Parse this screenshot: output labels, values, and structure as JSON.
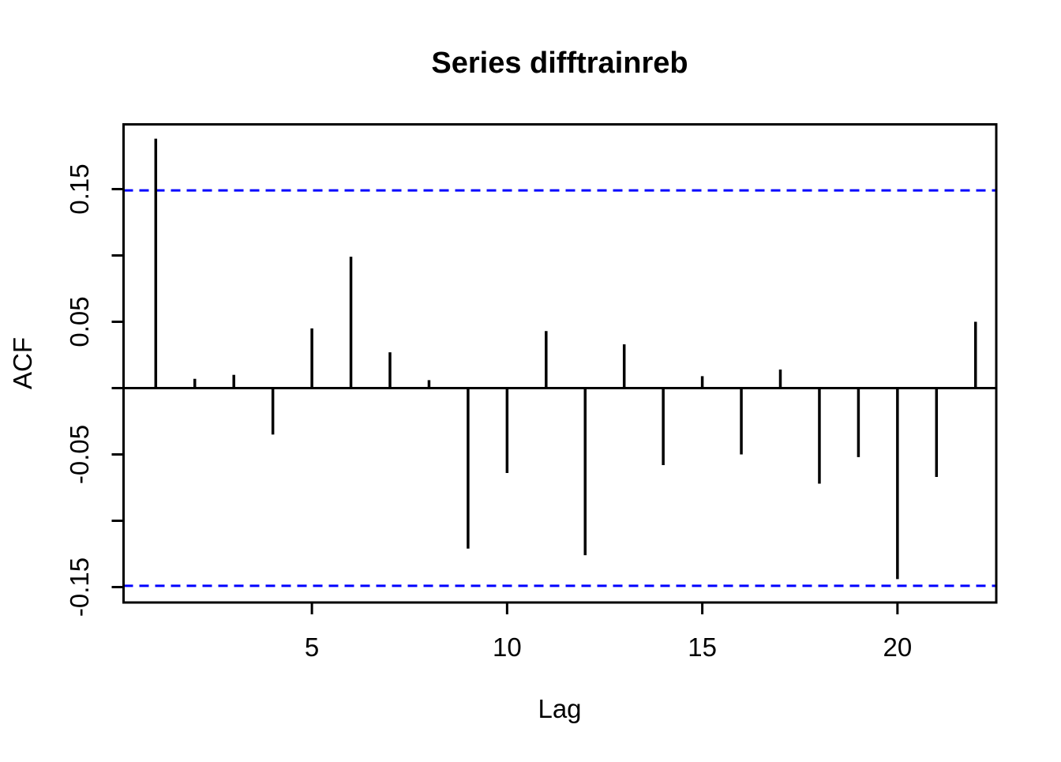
{
  "chart_data": {
    "type": "bar",
    "subtype": "acf-stem-plot",
    "title": "Series difftrainreb",
    "xlabel": "Lag",
    "ylabel": "ACF",
    "lags": [
      1,
      2,
      3,
      4,
      5,
      6,
      7,
      8,
      9,
      10,
      11,
      12,
      13,
      14,
      15,
      16,
      17,
      18,
      19,
      20,
      21,
      22
    ],
    "values": [
      0.188,
      0.007,
      0.01,
      -0.035,
      0.045,
      0.099,
      0.027,
      0.006,
      -0.121,
      -0.064,
      0.043,
      -0.126,
      0.033,
      -0.058,
      0.009,
      -0.05,
      0.014,
      -0.072,
      -0.052,
      -0.144,
      -0.067,
      0.05
    ],
    "confidence_interval": 0.149,
    "ci_line_style": "dashed",
    "xlim": [
      0.17,
      22.54
    ],
    "ylim": [
      -0.161,
      0.199
    ],
    "x_ticks": [
      {
        "value": 5,
        "label": "5"
      },
      {
        "value": 10,
        "label": "10"
      },
      {
        "value": 15,
        "label": "15"
      },
      {
        "value": 20,
        "label": "20"
      }
    ],
    "y_ticks": [
      {
        "value": 0.15,
        "label": "0.15"
      },
      {
        "value": 0.1,
        "label": ""
      },
      {
        "value": 0.05,
        "label": "0.05"
      },
      {
        "value": 0.0,
        "label": ""
      },
      {
        "value": -0.05,
        "label": "-0.05"
      },
      {
        "value": -0.1,
        "label": ""
      },
      {
        "value": -0.15,
        "label": "-0.15"
      }
    ],
    "grid": false,
    "legend": "none",
    "colors": {
      "bar": "#000000",
      "axis": "#000000",
      "ci_line": "#0000FF",
      "background": "#FFFFFF"
    }
  }
}
